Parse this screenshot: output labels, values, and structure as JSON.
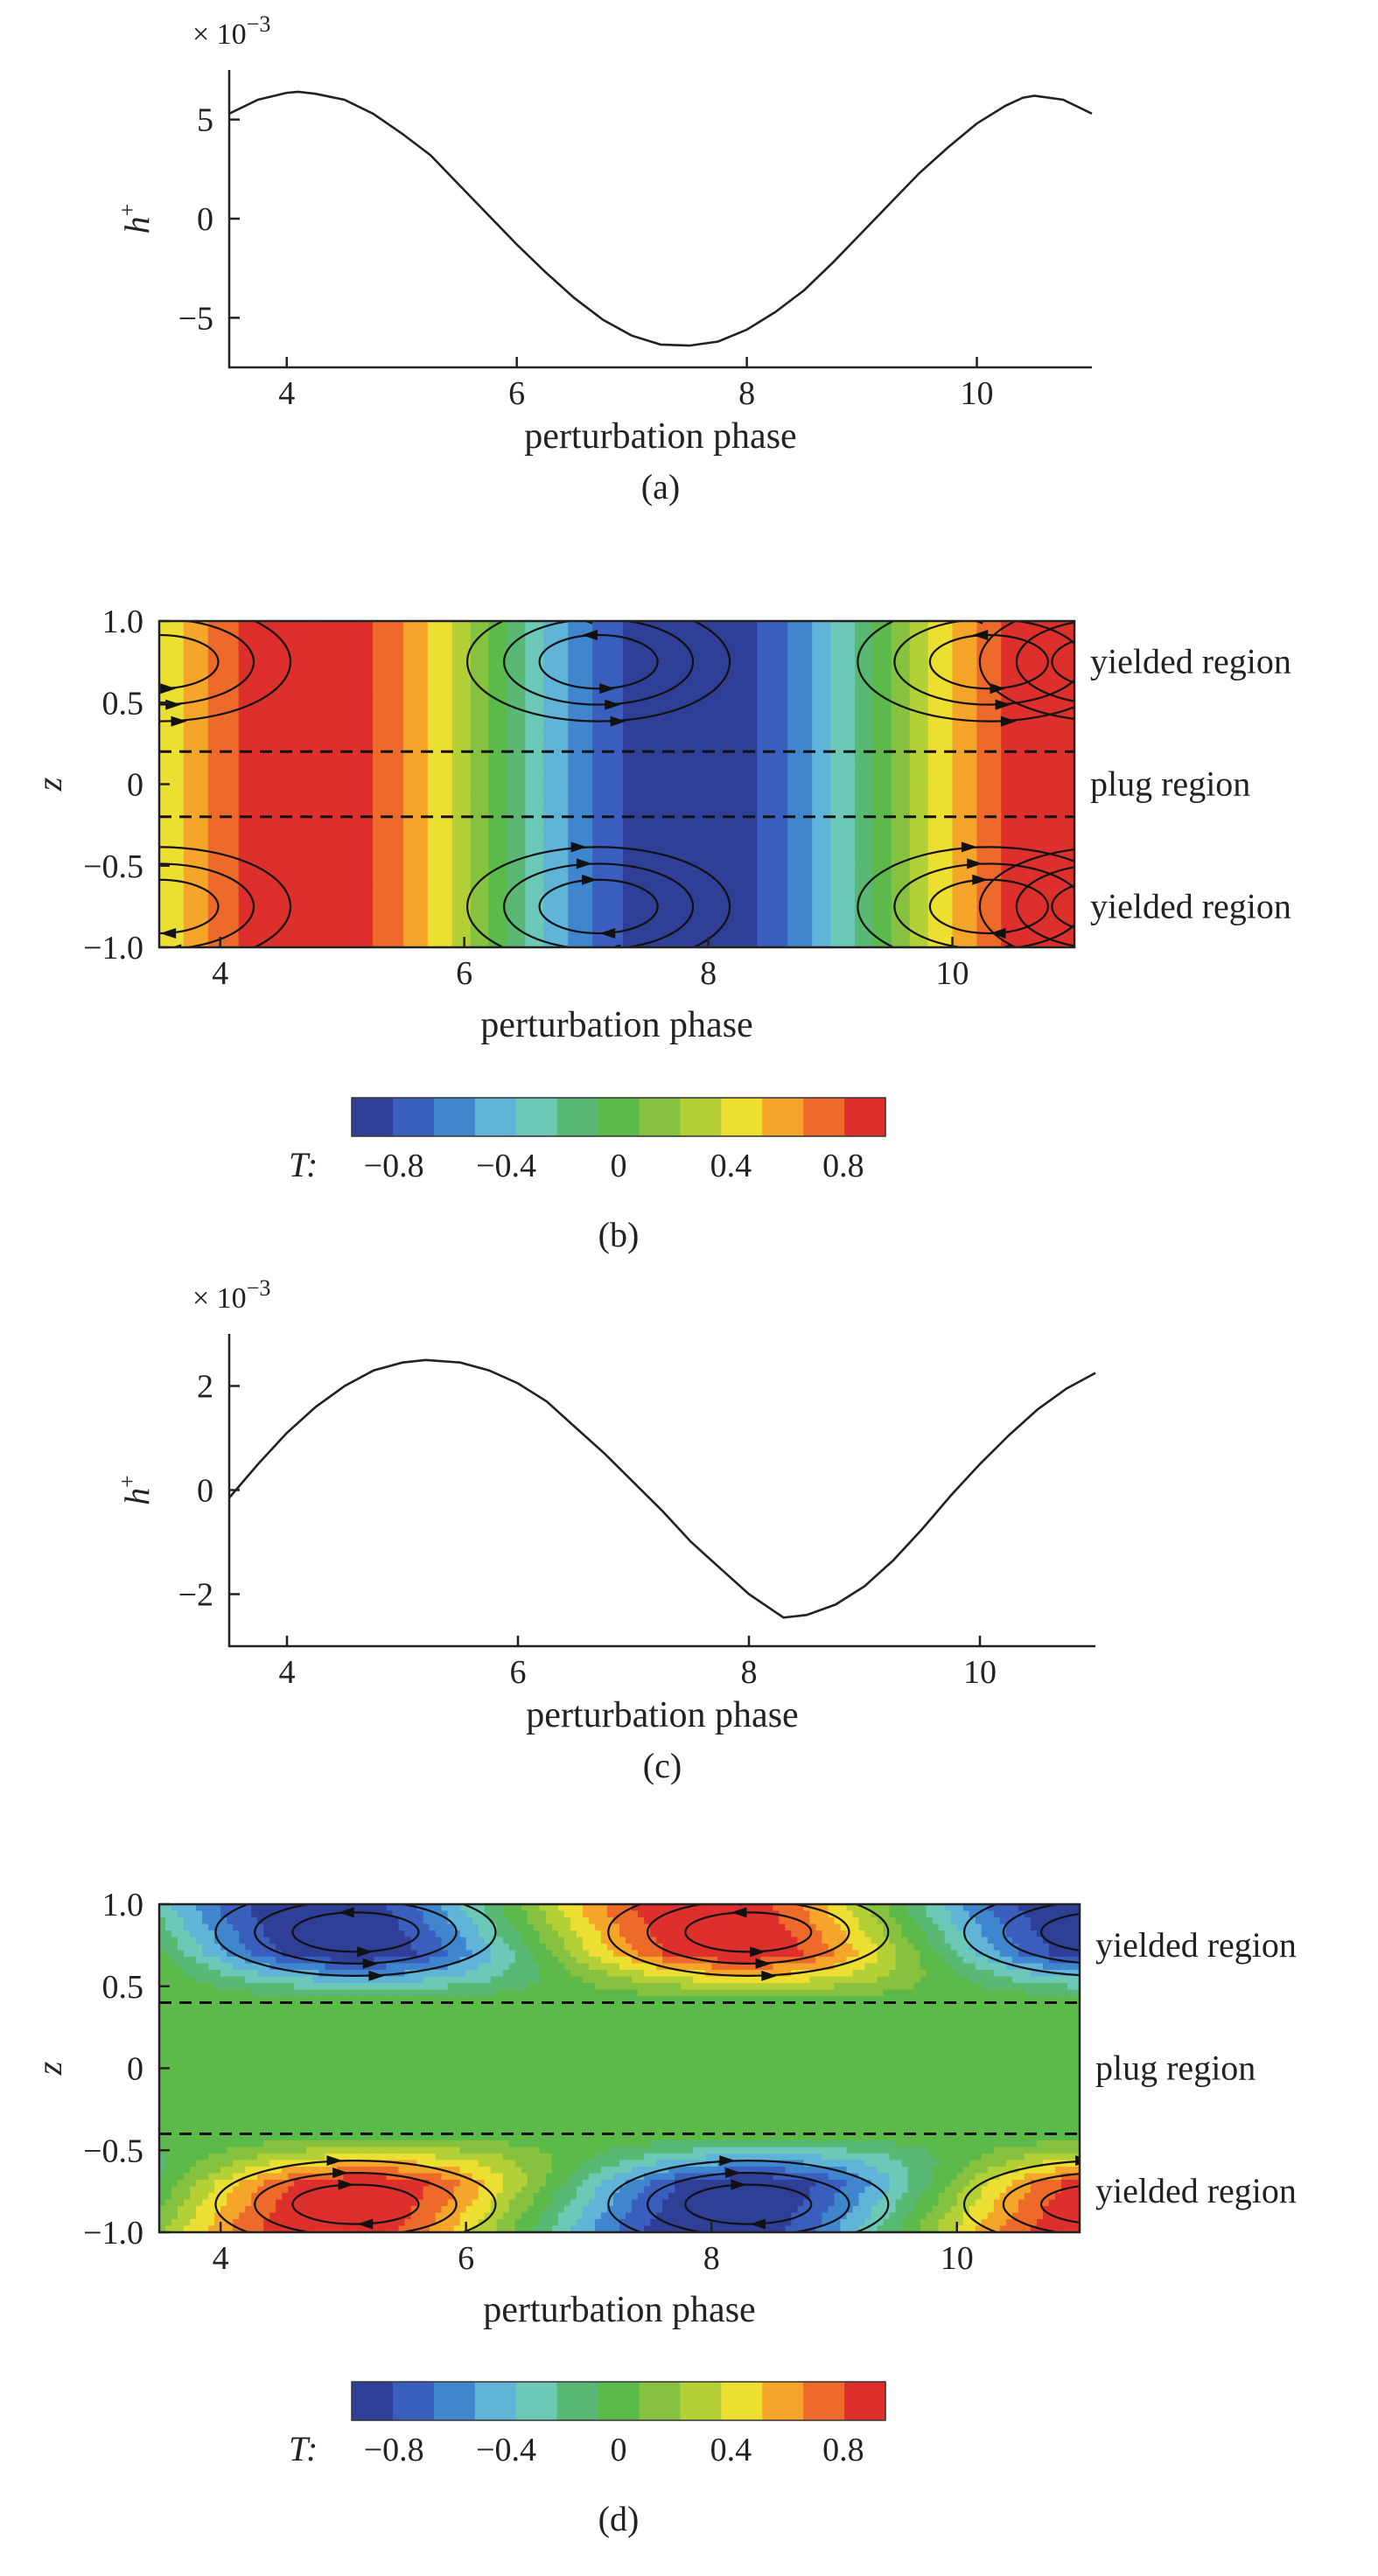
{
  "colors": {
    "colormap": [
      "#2f3f98",
      "#3a5ebd",
      "#3f86cf",
      "#5fb4d8",
      "#6cc9b8",
      "#59b873",
      "#5cba4a",
      "#86c23f",
      "#b3d137",
      "#ecdf31",
      "#f5a52a",
      "#ee6a2b",
      "#dd2f2b"
    ]
  },
  "chart_data": [
    {
      "type": "line",
      "panel_label": "(a)",
      "xlabel": "perturbation phase",
      "ylabel": "h",
      "ylabel_sup": "+",
      "scale_prefix": "× 10",
      "scale_exp": "−3",
      "xlim": [
        3.5,
        11
      ],
      "ylim": [
        -7.5,
        7.5
      ],
      "xticks": [
        4,
        6,
        8,
        10
      ],
      "xtick_labels": [
        "4",
        "6",
        "8",
        "10"
      ],
      "yticks": [
        5,
        0,
        -5
      ],
      "ytick_labels": [
        "5",
        "0",
        "−5"
      ],
      "x": [
        3.5,
        3.75,
        4.0,
        4.1,
        4.25,
        4.5,
        4.75,
        5.0,
        5.25,
        5.5,
        5.75,
        6.0,
        6.25,
        6.5,
        6.75,
        7.0,
        7.25,
        7.5,
        7.75,
        8.0,
        8.25,
        8.5,
        8.75,
        9.0,
        9.25,
        9.5,
        9.75,
        10.0,
        10.25,
        10.4,
        10.5,
        10.75,
        11.0
      ],
      "y": [
        5.3,
        6.0,
        6.35,
        6.4,
        6.3,
        6.0,
        5.3,
        4.3,
        3.2,
        1.7,
        0.2,
        -1.3,
        -2.7,
        -4.0,
        -5.1,
        -5.9,
        -6.35,
        -6.4,
        -6.2,
        -5.6,
        -4.7,
        -3.6,
        -2.2,
        -0.7,
        0.8,
        2.3,
        3.6,
        4.8,
        5.7,
        6.1,
        6.2,
        6.0,
        5.3
      ]
    },
    {
      "type": "heatmap",
      "panel_label": "(b)",
      "xlabel": "perturbation phase",
      "ylabel": "z",
      "xlim": [
        3.5,
        11
      ],
      "ylim": [
        -1,
        1
      ],
      "xticks": [
        4,
        6,
        8,
        10
      ],
      "xtick_labels": [
        "4",
        "6",
        "8",
        "10"
      ],
      "yticks": [
        1.0,
        0.5,
        0,
        -0.5,
        -1.0
      ],
      "ytick_labels": [
        "1.0",
        "0.5",
        "0",
        "−0.5",
        "−1.0"
      ],
      "plug_bounds": [
        0.2,
        -0.2
      ],
      "region_labels": [
        "yielded region",
        "plug region",
        "yielded region"
      ],
      "colorbar_label": "T:",
      "colorbar_ticks": [
        "−0.8",
        "−0.4",
        "0",
        "0.4",
        "0.8"
      ],
      "colorbar_tick_values": [
        -0.8,
        -0.4,
        0,
        0.4,
        0.8
      ],
      "colorbar_range": [
        -0.95,
        0.95
      ],
      "field": "T(x,z) = cos(x − 4.7), uniform in z",
      "vortex_centers_x": [
        3.5,
        7.1,
        10.3,
        11.0
      ],
      "vortex_center_z": [
        0.75,
        -0.75
      ]
    },
    {
      "type": "line",
      "panel_label": "(c)",
      "xlabel": "perturbation phase",
      "ylabel": "h",
      "ylabel_sup": "+",
      "scale_prefix": "× 10",
      "scale_exp": "−3",
      "xlim": [
        3.5,
        11
      ],
      "ylim": [
        -3,
        3
      ],
      "xticks": [
        4,
        6,
        8,
        10
      ],
      "xtick_labels": [
        "4",
        "6",
        "8",
        "10"
      ],
      "yticks": [
        2,
        0,
        -2
      ],
      "ytick_labels": [
        "2",
        "0",
        "−2"
      ],
      "x": [
        3.5,
        3.75,
        4.0,
        4.25,
        4.5,
        4.75,
        5.0,
        5.2,
        5.5,
        5.75,
        6.0,
        6.25,
        6.5,
        6.75,
        7.0,
        7.25,
        7.5,
        7.75,
        8.0,
        8.3,
        8.5,
        8.75,
        9.0,
        9.25,
        9.5,
        9.75,
        10.0,
        10.25,
        10.5,
        10.75,
        11.0
      ],
      "y": [
        -0.15,
        0.5,
        1.1,
        1.6,
        2.0,
        2.3,
        2.45,
        2.5,
        2.45,
        2.3,
        2.05,
        1.7,
        1.2,
        0.7,
        0.15,
        -0.4,
        -1.0,
        -1.5,
        -2.0,
        -2.45,
        -2.4,
        -2.2,
        -1.85,
        -1.35,
        -0.75,
        -0.1,
        0.5,
        1.05,
        1.55,
        1.95,
        2.25
      ]
    },
    {
      "type": "heatmap",
      "panel_label": "(d)",
      "xlabel": "perturbation phase",
      "ylabel": "z",
      "xlim": [
        3.5,
        11
      ],
      "ylim": [
        -1,
        1
      ],
      "xticks": [
        4,
        6,
        8,
        10
      ],
      "xtick_labels": [
        "4",
        "6",
        "8",
        "10"
      ],
      "yticks": [
        1.0,
        0.5,
        0,
        -0.5,
        -1.0
      ],
      "ytick_labels": [
        "1.0",
        "0.5",
        "0",
        "−0.5",
        "−1.0"
      ],
      "plug_bounds": [
        0.4,
        -0.4
      ],
      "region_labels": [
        "yielded region",
        "plug region",
        "yielded region"
      ],
      "colorbar_label": "T:",
      "colorbar_ticks": [
        "−0.8",
        "−0.4",
        "0",
        "0.4",
        "0.8"
      ],
      "colorbar_tick_values": [
        -0.8,
        -0.4,
        0,
        0.4,
        0.8
      ],
      "colorbar_range": [
        -0.95,
        0.95
      ],
      "field": "T = 0 in plug; bands in yielded layers shifted with z",
      "vortex_centers_x": [
        5.1,
        8.3,
        11.0
      ],
      "vortex_center_z": [
        0.83,
        -0.83
      ]
    }
  ]
}
